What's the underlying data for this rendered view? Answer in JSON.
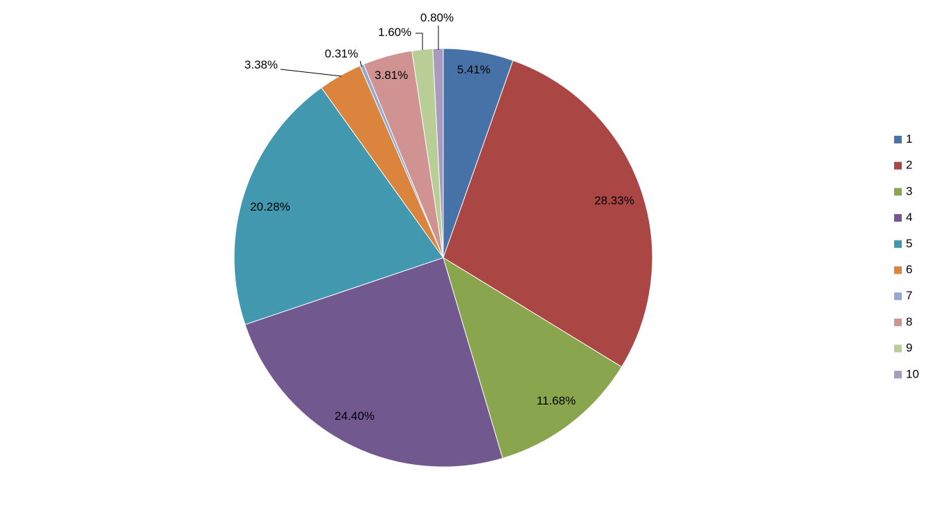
{
  "chart_data": {
    "type": "pie",
    "title": "",
    "legend_position": "right",
    "start_angle_deg": 0,
    "direction": "clockwise",
    "slices": [
      {
        "category": "1",
        "label": "5.41%",
        "value": 5.41,
        "color": "#4672A8"
      },
      {
        "category": "2",
        "label": "28.33%",
        "value": 28.33,
        "color": "#AA4744"
      },
      {
        "category": "3",
        "label": "11.68%",
        "value": 11.68,
        "color": "#89A54E"
      },
      {
        "category": "4",
        "label": "24.40%",
        "value": 24.4,
        "color": "#71588F"
      },
      {
        "category": "5",
        "label": "20.28%",
        "value": 20.28,
        "color": "#4198AF"
      },
      {
        "category": "6",
        "label": "3.38%",
        "value": 3.38,
        "color": "#DB843D"
      },
      {
        "category": "7",
        "label": "0.31%",
        "value": 0.31,
        "color": "#93A9CF"
      },
      {
        "category": "8",
        "label": "3.81%",
        "value": 3.81,
        "color": "#D19392"
      },
      {
        "category": "9",
        "label": "1.60%",
        "value": 1.6,
        "color": "#B9CD96"
      },
      {
        "category": "10",
        "label": "0.80%",
        "value": 0.8,
        "color": "#A99BBD"
      }
    ]
  }
}
